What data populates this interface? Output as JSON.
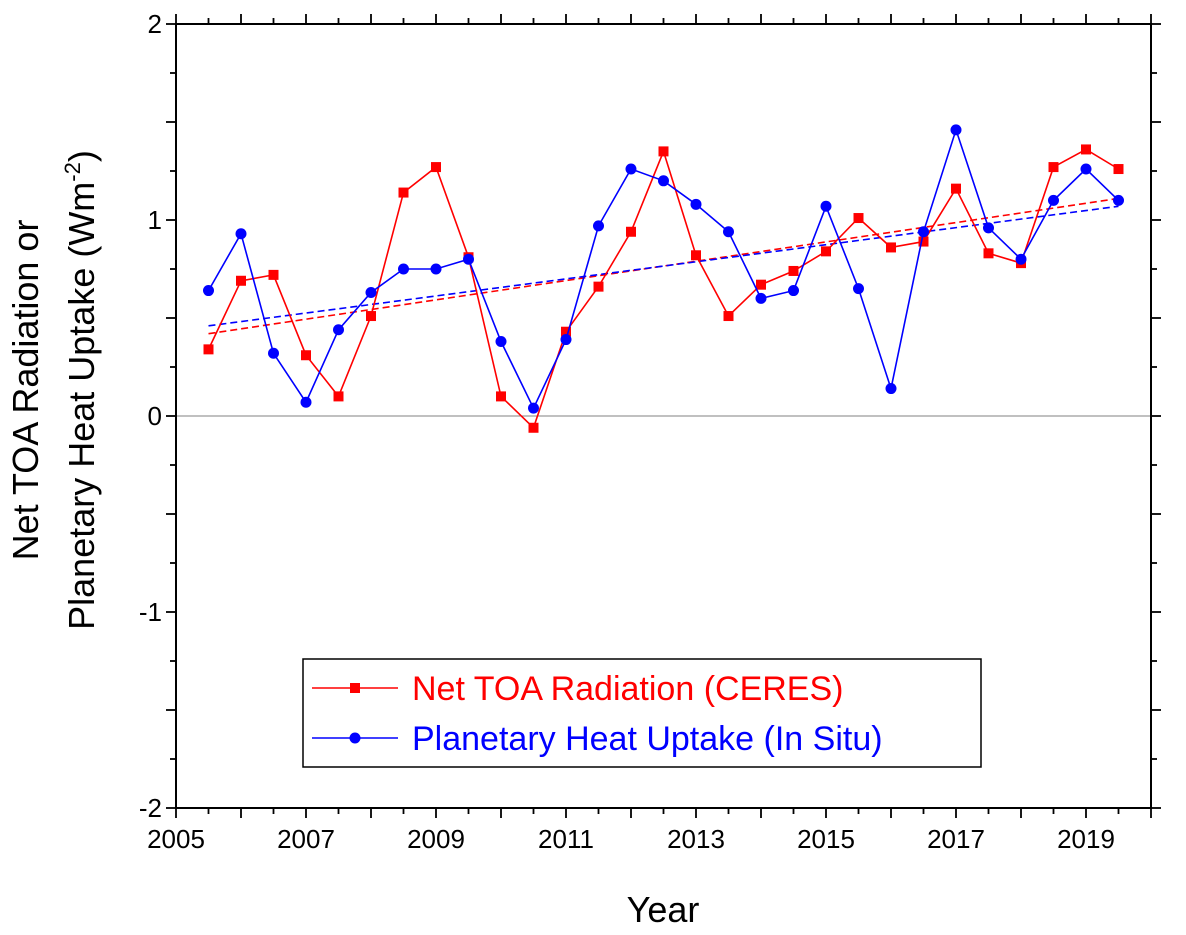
{
  "chart_data": {
    "type": "line",
    "title": "",
    "xlabel": "Year",
    "ylabel_line1": "Net TOA Radiation or",
    "ylabel_line2_main": "Planetary Heat Uptake (Wm",
    "ylabel_line2_sup": "-2",
    "ylabel_line2_end": ")",
    "xlim": [
      2005,
      2020
    ],
    "ylim": [
      -2,
      2
    ],
    "x_ticks": [
      "2005",
      "2007",
      "2009",
      "2011",
      "2013",
      "2015",
      "2017",
      "2019"
    ],
    "y_ticks": [
      "2",
      "1",
      "0",
      "-1",
      "-2"
    ],
    "zero_line": true,
    "legend_position": "bottom-center",
    "series": [
      {
        "name": "Net TOA Radiation (CERES)",
        "color": "#ff0000",
        "marker": "square",
        "x": [
          2005.5,
          2006.0,
          2006.5,
          2007.0,
          2007.5,
          2008.0,
          2008.5,
          2009.0,
          2009.5,
          2010.0,
          2010.5,
          2011.0,
          2011.5,
          2012.0,
          2012.5,
          2013.0,
          2013.5,
          2014.0,
          2014.5,
          2015.0,
          2015.5,
          2016.0,
          2016.5,
          2017.0,
          2017.5,
          2018.0,
          2018.5,
          2019.0,
          2019.5
        ],
        "y": [
          0.34,
          0.69,
          0.72,
          0.31,
          0.1,
          0.51,
          1.14,
          1.27,
          0.81,
          0.1,
          -0.06,
          0.43,
          0.66,
          0.94,
          1.35,
          0.82,
          0.51,
          0.67,
          0.74,
          0.84,
          1.01,
          0.86,
          0.89,
          1.16,
          0.83,
          0.78,
          1.27,
          1.36,
          1.26
        ],
        "trend": [
          0.42,
          1.11
        ]
      },
      {
        "name": "Planetary Heat Uptake (In Situ)",
        "color": "#0000ff",
        "marker": "circle",
        "x": [
          2005.5,
          2006.0,
          2006.5,
          2007.0,
          2007.5,
          2008.0,
          2008.5,
          2009.0,
          2009.5,
          2010.0,
          2010.5,
          2011.0,
          2011.5,
          2012.0,
          2012.5,
          2013.0,
          2013.5,
          2014.0,
          2014.5,
          2015.0,
          2015.5,
          2016.0,
          2016.5,
          2017.0,
          2017.5,
          2018.0,
          2018.5,
          2019.0,
          2019.5
        ],
        "y": [
          0.64,
          0.93,
          0.32,
          0.07,
          0.44,
          0.63,
          0.75,
          0.75,
          0.8,
          0.38,
          0.04,
          0.39,
          0.97,
          1.26,
          1.2,
          1.08,
          0.94,
          0.6,
          0.64,
          1.07,
          0.65,
          0.14,
          0.94,
          1.46,
          0.96,
          0.8,
          1.1,
          1.26,
          1.1
        ],
        "trend": [
          0.46,
          1.07
        ]
      }
    ]
  }
}
